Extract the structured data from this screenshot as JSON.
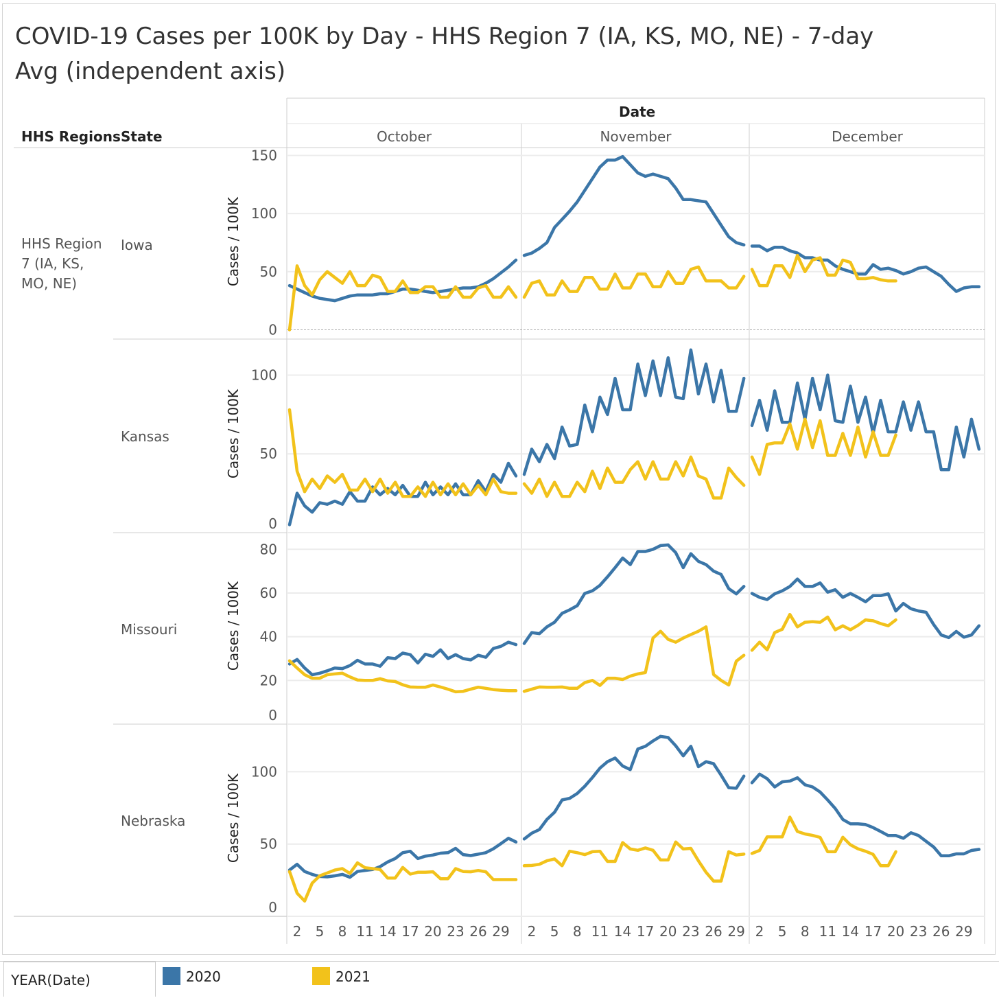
{
  "title": "COVID-19 Cases per 100K by Day - HHS Region 7 (IA, KS, MO, NE) - 7-day Avg (independent axis)",
  "header": {
    "columns_title": "Date",
    "col1": "HHS Regions",
    "col2": "State"
  },
  "region_label": "HHS Region 7 (IA, KS, MO, NE)",
  "legend": {
    "title": "YEAR(Date)",
    "items": [
      {
        "label": "2020",
        "color": "#3b76a8"
      },
      {
        "label": "2021",
        "color": "#f2c21b"
      }
    ]
  },
  "chart_data": {
    "type": "line",
    "x_label": "Date",
    "y_label": "Cases / 100K",
    "months": [
      {
        "name": "October",
        "days": 31,
        "ticks": [
          "2",
          "5",
          "8",
          "11",
          "14",
          "17",
          "20",
          "23",
          "26",
          "29"
        ]
      },
      {
        "name": "November",
        "days": 30,
        "ticks": [
          "2",
          "5",
          "8",
          "11",
          "14",
          "17",
          "20",
          "23",
          "26",
          "29"
        ]
      },
      {
        "name": "December",
        "days": 31,
        "ticks": [
          "2",
          "5",
          "8",
          "11",
          "14",
          "17",
          "20",
          "23",
          "26",
          "29"
        ]
      }
    ],
    "rows": [
      {
        "state": "Iowa",
        "ylim": [
          -8,
          155
        ],
        "yticks": [
          0,
          50,
          100,
          150
        ],
        "series": {
          "2020": [
            [
              38,
              35,
              32,
              29,
              27,
              26,
              25,
              27,
              29,
              30,
              30,
              30,
              31,
              31,
              33,
              35,
              35,
              34,
              33,
              32,
              33,
              34,
              35,
              36,
              36,
              37,
              40,
              44,
              49,
              54,
              60
            ],
            [
              64,
              66,
              70,
              75,
              88,
              95,
              102,
              110,
              120,
              130,
              140,
              146,
              146,
              149,
              142,
              135,
              132,
              134,
              132,
              130,
              122,
              112,
              112,
              111,
              110,
              100,
              90,
              80,
              75,
              73
            ],
            [
              72,
              72,
              68,
              71,
              71,
              68,
              66,
              62,
              62,
              60,
              60,
              55,
              52,
              50,
              48,
              48,
              56,
              52,
              53,
              51,
              48,
              50,
              53,
              54,
              50,
              46,
              39,
              33,
              36,
              37,
              37
            ]
          ],
          "2021": [
            [
              0,
              55,
              38,
              30,
              43,
              50,
              45,
              40,
              50,
              38,
              38,
              47,
              45,
              33,
              33,
              42,
              32,
              32,
              37,
              37,
              28,
              28,
              37,
              28,
              28,
              36,
              38,
              28,
              28,
              37,
              28
            ],
            [
              28,
              40,
              42,
              30,
              30,
              42,
              33,
              33,
              45,
              45,
              35,
              35,
              48,
              36,
              36,
              48,
              48,
              37,
              37,
              50,
              40,
              40,
              52,
              54,
              42,
              42,
              42,
              36,
              36,
              46
            ],
            [
              52,
              38,
              38,
              55,
              55,
              45,
              64,
              50,
              60,
              62,
              47,
              47,
              60,
              58,
              44,
              44,
              45,
              43,
              42,
              42
            ]
          ]
        }
      },
      {
        "state": "Kansas",
        "ylim": [
          0,
          122
        ],
        "yticks": [
          0,
          50,
          100
        ],
        "series": {
          "2020": [
            [
              5,
              25,
              17,
              13,
              19,
              18,
              20,
              18,
              26,
              20,
              20,
              29,
              24,
              28,
              24,
              30,
              23,
              23,
              32,
              24,
              29,
              24,
              31,
              24,
              24,
              33,
              26,
              37,
              32,
              44,
              36
            ],
            [
              37,
              53,
              45,
              56,
              47,
              67,
              55,
              56,
              81,
              64,
              86,
              75,
              98,
              78,
              78,
              107,
              87,
              109,
              87,
              111,
              86,
              85,
              116,
              88,
              107,
              83,
              103,
              77,
              77,
              98
            ],
            [
              68,
              84,
              65,
              90,
              70,
              70,
              95,
              72,
              98,
              78,
              100,
              71,
              70,
              93,
              70,
              86,
              63,
              84,
              64,
              64,
              83,
              65,
              83,
              64,
              64,
              40,
              40,
              67,
              48,
              72,
              53
            ]
          ],
          "2021": [
            [
              78,
              39,
              26,
              34,
              28,
              36,
              32,
              37,
              27,
              27,
              34,
              26,
              34,
              25,
              32,
              23,
              23,
              29,
              23,
              32,
              24,
              31,
              24,
              31,
              24,
              30,
              24,
              34,
              26,
              25,
              25
            ],
            [
              31,
              25,
              34,
              23,
              32,
              23,
              23,
              32,
              26,
              39,
              28,
              41,
              32,
              32,
              40,
              45,
              34,
              45,
              34,
              34,
              45,
              36,
              48,
              36,
              34,
              22,
              22,
              41,
              35,
              30
            ],
            [
              48,
              37,
              56,
              57,
              57,
              69,
              53,
              72,
              54,
              71,
              49,
              49,
              63,
              49,
              67,
              48,
              64,
              49,
              49,
              62
            ]
          ]
        }
      },
      {
        "state": "Missouri",
        "ylim": [
          0,
          87
        ],
        "yticks": [
          0,
          20,
          40,
          60,
          80
        ],
        "series": {
          "2020": [
            [
              27.5,
              29.6,
              25.7,
              22.6,
              23.3,
              24.4,
              25.7,
              25.4,
              26.8,
              29.2,
              27.5,
              27.5,
              26.5,
              30.4,
              30,
              32.5,
              31.8,
              28,
              32,
              31,
              34,
              30,
              31.8,
              30,
              29.4,
              31.5,
              30.6,
              34.6,
              35.6,
              37.5,
              36.4
            ],
            [
              36.9,
              41.9,
              41.4,
              44.5,
              46.6,
              50.7,
              52.3,
              54.2,
              59.8,
              61,
              63.5,
              67.4,
              71.6,
              76,
              73,
              79,
              79,
              80,
              81.7,
              82,
              78.5,
              71.6,
              78,
              74.5,
              73,
              70,
              68.5,
              62,
              59.6,
              63
            ],
            [
              59.8,
              58,
              57,
              59.6,
              61,
              63,
              66.4,
              63,
              63,
              64.6,
              60.4,
              61.5,
              58,
              59.8,
              58,
              56,
              58.8,
              58.8,
              59.6,
              51.8,
              55.2,
              52.8,
              51.8,
              51.2,
              45.6,
              40.8,
              39.6,
              42.4,
              39.8,
              40.8,
              45
            ]
          ],
          "2021": [
            [
              29,
              25.7,
              22.6,
              21,
              21,
              22.6,
              23,
              23.3,
              21.6,
              20.2,
              20,
              20,
              20.8,
              19.8,
              19.5,
              18,
              17,
              16.9,
              16.9,
              17.9,
              17,
              16,
              14.8,
              15,
              16,
              16.9,
              16.4,
              15.8,
              15.5,
              15.3,
              15.3
            ],
            [
              15,
              16,
              17,
              16.9,
              16.9,
              17,
              16.4,
              16.4,
              19,
              20,
              17.7,
              21,
              21,
              20.4,
              22,
              23,
              23.6,
              39.4,
              42.5,
              38.8,
              37.5,
              39.4,
              41,
              42.5,
              44.5,
              22.7,
              20,
              17.9,
              28.8,
              31.5
            ],
            [
              33.8,
              37.5,
              34,
              41.9,
              43.4,
              50.2,
              44.5,
              46.6,
              46.9,
              46.6,
              49,
              43.2,
              45,
              43.2,
              45.2,
              47.7,
              47.3,
              46,
              45,
              47.7
            ]
          ]
        }
      },
      {
        "state": "Nebraska",
        "ylim": [
          0,
          132
        ],
        "yticks": [
          0,
          50,
          100
        ],
        "series": {
          "2020": [
            [
              32,
              36,
              31,
              29,
              27.6,
              27.3,
              28,
              29,
              27,
              31,
              31.7,
              32.4,
              34.4,
              37.6,
              40,
              44,
              45,
              40,
              41.6,
              42.4,
              43.7,
              44,
              47,
              42.7,
              42,
              43,
              44,
              46.7,
              50.3,
              54,
              51.4
            ],
            [
              53.5,
              57.5,
              60,
              67,
              72,
              80.5,
              81.6,
              85,
              90,
              96,
              102.5,
              107,
              109.5,
              104,
              101.5,
              115.7,
              117.6,
              121.3,
              124.5,
              123.7,
              118,
              111,
              117.6,
              103.5,
              107,
              105.6,
              97.6,
              89,
              88.6,
              97
            ],
            [
              92.4,
              98.4,
              95.2,
              89.5,
              93,
              93.6,
              95.8,
              91,
              89.5,
              86,
              80.5,
              74.6,
              67,
              64,
              64,
              63.5,
              61.4,
              58.7,
              55.9,
              55.9,
              54,
              57.8,
              55.9,
              51.9,
              48,
              41.9,
              41.9,
              43.2,
              43.2,
              45.6,
              46.3
            ]
          ],
          "2021": [
            [
              31,
              16,
              10.6,
              23,
              28,
              30,
              32,
              33,
              29.7,
              37,
              33.6,
              33,
              32.4,
              26.5,
              26.5,
              33.8,
              29.2,
              30.5,
              30.5,
              30.8,
              26,
              26,
              33,
              31,
              30.8,
              31.7,
              30.8,
              25.4,
              25.4,
              25.4,
              25.4
            ],
            [
              35,
              35.2,
              36,
              38.4,
              39.7,
              35,
              45,
              44,
              42.7,
              44.7,
              45,
              38,
              38,
              51,
              46.6,
              45.7,
              47.3,
              45.7,
              39,
              39,
              51.4,
              46.6,
              47,
              38.4,
              30.5,
              24.4,
              24.4,
              44.7,
              42.4,
              43
            ],
            [
              43.5,
              45.6,
              55,
              55,
              55,
              68.6,
              58.7,
              57,
              56,
              54.6,
              44.7,
              44.7,
              54.7,
              49.5,
              46.7,
              45,
              42.9,
              35,
              35,
              44.7
            ]
          ]
        }
      }
    ]
  }
}
